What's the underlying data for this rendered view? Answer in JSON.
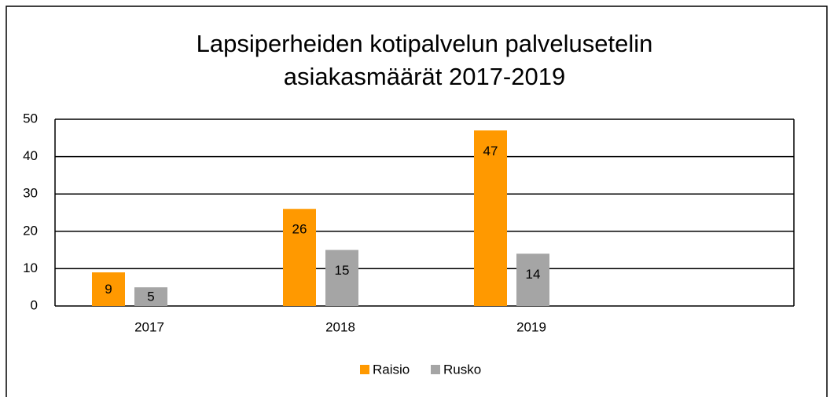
{
  "chart_data": {
    "type": "bar",
    "title": [
      "Lapsiperheiden kotipalvelun palvelusetelin",
      "asiakasmäärät 2017-2019"
    ],
    "categories": [
      "2017",
      "2018",
      "2019"
    ],
    "series": [
      {
        "name": "Raisio",
        "color": "#ff9900",
        "values": [
          9,
          26,
          47
        ]
      },
      {
        "name": "Rusko",
        "color": "#a5a5a5",
        "values": [
          5,
          15,
          14
        ]
      }
    ],
    "ylim": [
      0,
      50
    ],
    "yticks": [
      0,
      10,
      20,
      30,
      40,
      50
    ],
    "grid": true,
    "legend": "bottom"
  }
}
